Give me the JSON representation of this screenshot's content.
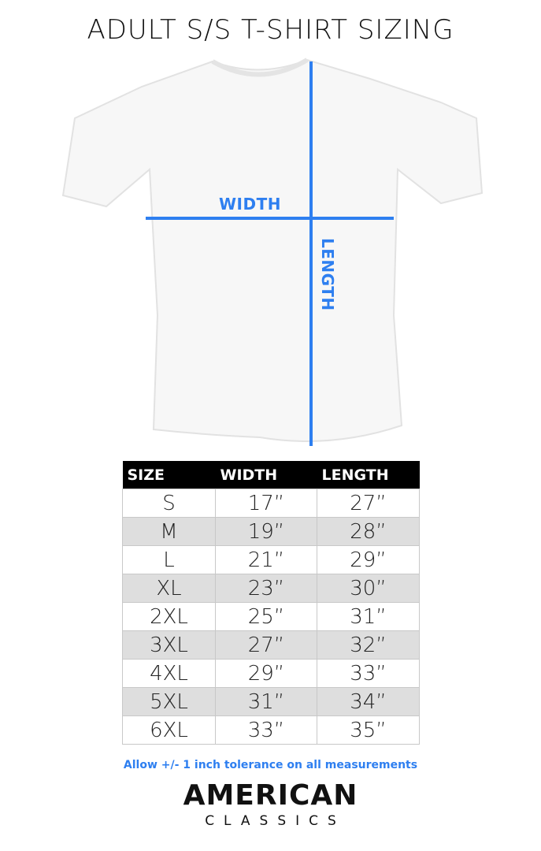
{
  "title": "ADULT S/S T-SHIRT SIZING",
  "diagram": {
    "width_label": "WIDTH",
    "length_label": "LENGTH",
    "line_color": "#2e7ff0"
  },
  "table": {
    "headers": [
      "SIZE",
      "WIDTH",
      "LENGTH"
    ],
    "rows": [
      [
        "S",
        "17”",
        "27”"
      ],
      [
        "M",
        "19”",
        "28”"
      ],
      [
        "L",
        "21”",
        "29”"
      ],
      [
        "XL",
        "23”",
        "30”"
      ],
      [
        "2XL",
        "25”",
        "31”"
      ],
      [
        "3XL",
        "27”",
        "32”"
      ],
      [
        "4XL",
        "29”",
        "33”"
      ],
      [
        "5XL",
        "31”",
        "34”"
      ],
      [
        "6XL",
        "33”",
        "35”"
      ]
    ]
  },
  "note": "Allow +/- 1 inch tolerance on all measurements",
  "logo": {
    "line1": "AMERICAN",
    "line2": "CLASSICS"
  }
}
